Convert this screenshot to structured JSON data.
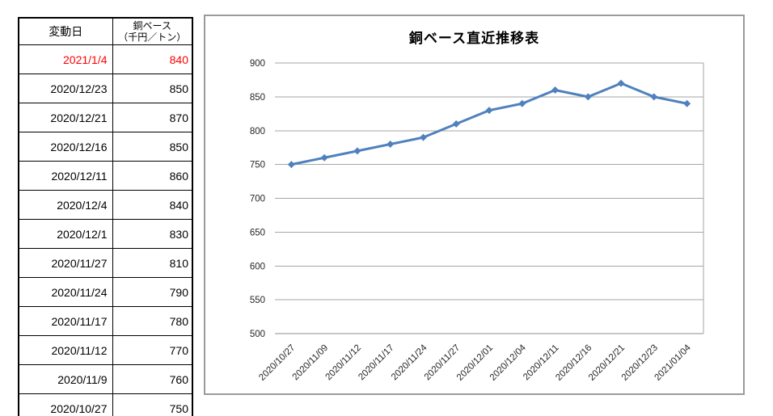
{
  "table": {
    "header": {
      "date_label": "変動日",
      "value_label_line1": "銅ベース",
      "value_label_line2": "（千円／トン）"
    },
    "rows": [
      {
        "date": "2021/1/4",
        "value": "840",
        "highlight": true
      },
      {
        "date": "2020/12/23",
        "value": "850",
        "highlight": false
      },
      {
        "date": "2020/12/21",
        "value": "870",
        "highlight": false
      },
      {
        "date": "2020/12/16",
        "value": "850",
        "highlight": false
      },
      {
        "date": "2020/12/11",
        "value": "860",
        "highlight": false
      },
      {
        "date": "2020/12/4",
        "value": "840",
        "highlight": false
      },
      {
        "date": "2020/12/1",
        "value": "830",
        "highlight": false
      },
      {
        "date": "2020/11/27",
        "value": "810",
        "highlight": false
      },
      {
        "date": "2020/11/24",
        "value": "790",
        "highlight": false
      },
      {
        "date": "2020/11/17",
        "value": "780",
        "highlight": false
      },
      {
        "date": "2020/11/12",
        "value": "770",
        "highlight": false
      },
      {
        "date": "2020/11/9",
        "value": "760",
        "highlight": false
      },
      {
        "date": "2020/10/27",
        "value": "750",
        "highlight": false
      }
    ]
  },
  "chart_data": {
    "type": "line",
    "title": "銅ベース直近推移表",
    "x": [
      "2020/10/27",
      "2020/11/09",
      "2020/11/12",
      "2020/11/17",
      "2020/11/24",
      "2020/11/27",
      "2020/12/01",
      "2020/12/04",
      "2020/12/11",
      "2020/12/16",
      "2020/12/21",
      "2020/12/23",
      "2021/01/04"
    ],
    "values": [
      750,
      760,
      770,
      780,
      790,
      810,
      830,
      840,
      860,
      850,
      870,
      850,
      840
    ],
    "xlabel": "",
    "ylabel": "",
    "ylim": [
      500,
      900
    ],
    "ytick_step": 50,
    "grid": true,
    "legend": "none",
    "marker": "diamond",
    "colors": {
      "line": "#4F81BD",
      "gridline": "#A6A6A6",
      "axis_line": "#8C8C8C",
      "axis_text": "#262626",
      "chart_border": "#9A9A9A",
      "highlight_text": "#FF0000",
      "title_text": "#000000"
    }
  }
}
